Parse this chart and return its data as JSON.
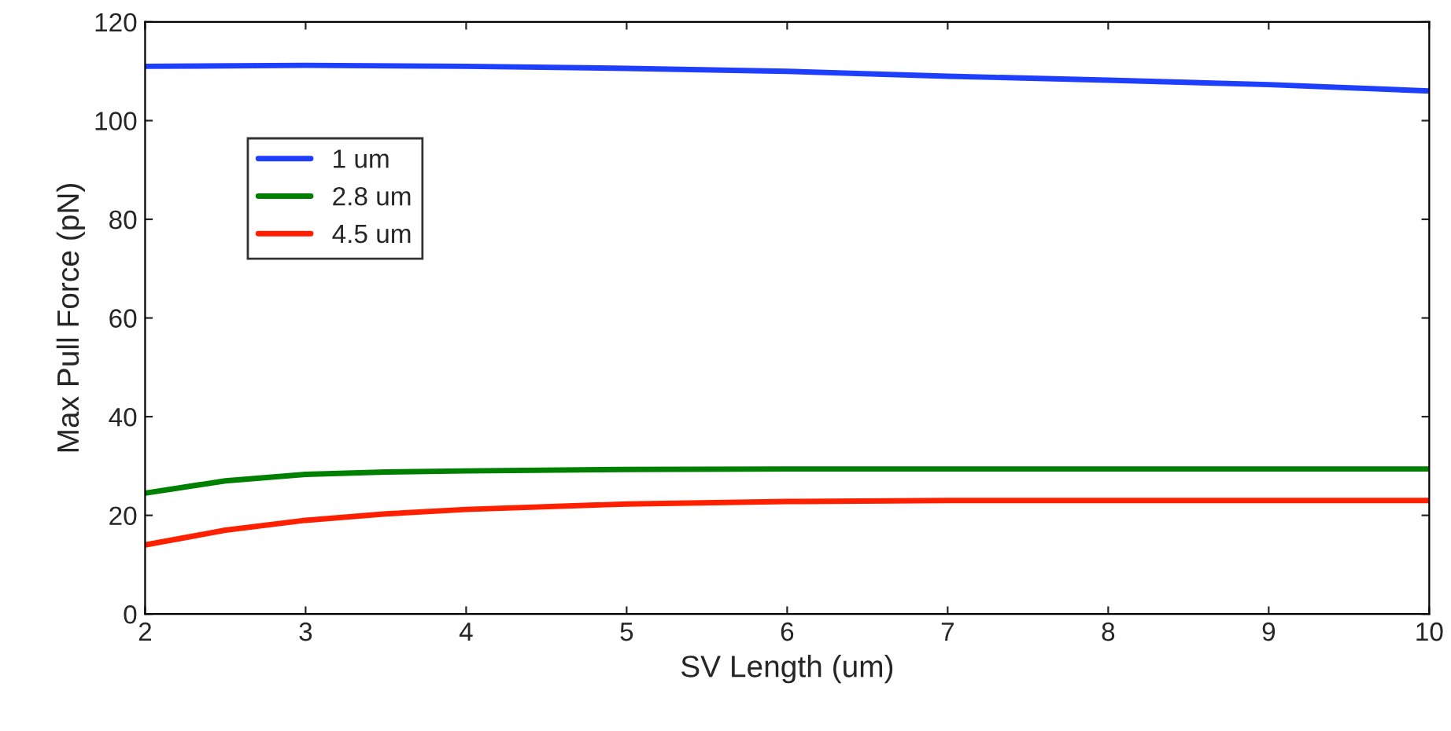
{
  "chart_data": {
    "type": "line",
    "xlabel": "SV Length (um)",
    "ylabel": "Max Pull Force (pN)",
    "xlim": [
      2,
      10
    ],
    "xticks": [
      2,
      3,
      4,
      5,
      6,
      7,
      8,
      9,
      10
    ],
    "ylim": [
      0,
      120
    ],
    "yticks": [
      0,
      20,
      40,
      60,
      80,
      100,
      120
    ],
    "grid": false,
    "legend": "top left",
    "marker": "none",
    "line_style": "solid",
    "series": [
      {
        "name": "1 um",
        "color": "#1f3fff",
        "x": [
          2,
          3,
          4,
          5,
          6,
          7,
          8,
          9,
          10
        ],
        "values": [
          111,
          111.2,
          111,
          110.6,
          110,
          109,
          108.2,
          107.3,
          106
        ]
      },
      {
        "name": "2.8 um",
        "color": "#008000",
        "x": [
          2,
          2.5,
          3,
          3.5,
          4,
          5,
          6,
          7,
          8,
          9,
          10
        ],
        "values": [
          24.5,
          27,
          28.3,
          28.8,
          29,
          29.3,
          29.4,
          29.4,
          29.4,
          29.4,
          29.4
        ]
      },
      {
        "name": "4.5 um",
        "color": "#ff2000",
        "x": [
          2,
          2.5,
          3,
          3.5,
          4,
          5,
          6,
          7,
          8,
          9,
          10
        ],
        "values": [
          14,
          17,
          19,
          20.3,
          21.2,
          22.3,
          22.8,
          23,
          23,
          23,
          23
        ]
      }
    ]
  }
}
